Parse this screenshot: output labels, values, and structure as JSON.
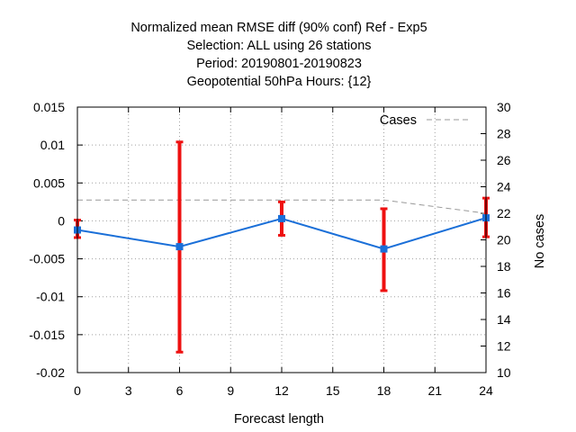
{
  "chart_data": {
    "type": "line",
    "title_lines": [
      "Normalized mean RMSE diff (90% conf) Ref - Exp5",
      "Selection: ALL using    26 stations",
      "Period: 20190801-20190823",
      "Geopotential 50hPa   Hours: {12}"
    ],
    "xlabel": "Forecast length",
    "ylabel": "",
    "y2label": "No cases",
    "xlim": [
      0,
      24
    ],
    "ylim": [
      -0.02,
      0.015
    ],
    "y2lim": [
      10,
      30
    ],
    "x_ticks": [
      "0",
      "3",
      "6",
      "9",
      "12",
      "15",
      "18",
      "21",
      "24"
    ],
    "y_ticks": [
      "0.015",
      "0.01",
      "0.005",
      "0",
      "-0.005",
      "-0.01",
      "-0.015",
      "-0.02"
    ],
    "y2_ticks": [
      "30",
      "28",
      "26",
      "24",
      "22",
      "20",
      "18",
      "16",
      "14",
      "12",
      "10"
    ],
    "grid": true,
    "legend": {
      "position": "top-right",
      "entries": [
        "Cases"
      ]
    },
    "series": [
      {
        "x": [
          0,
          6,
          12,
          18,
          24
        ],
        "values": [
          -0.0012,
          -0.0034,
          0.0003,
          -0.0037,
          0.0004
        ],
        "error_low": [
          -0.0022,
          -0.0173,
          -0.0019,
          -0.0092,
          -0.0021
        ],
        "error_high": [
          0.0001,
          0.0104,
          0.0025,
          0.0016,
          0.003
        ],
        "color": "#1a6fd8",
        "error_color": "#ee1111"
      },
      {
        "name": "Cases",
        "axis": "y2",
        "x": [
          0,
          6,
          12,
          18,
          24
        ],
        "values": [
          23,
          23,
          23,
          23,
          22
        ],
        "color": "#999999",
        "style": "dashed"
      }
    ]
  }
}
